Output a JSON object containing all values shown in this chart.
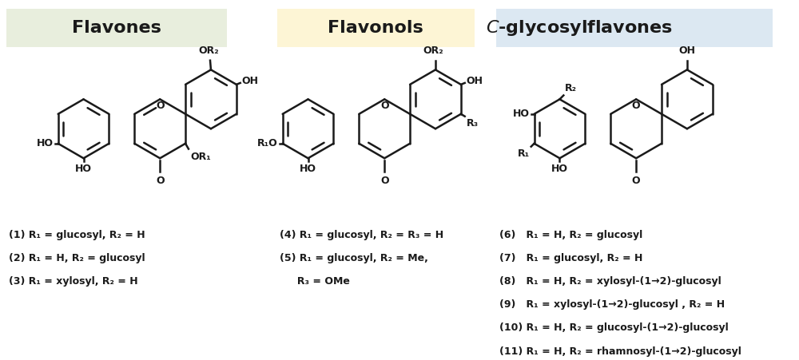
{
  "bg_color": "#ffffff",
  "header_flavones": "Flavones",
  "header_flavonols": "Flavonols",
  "header_bg_flavones": "#e8eedd",
  "header_bg_flavonols": "#fdf5d5",
  "header_bg_cglyco": "#dce8f2",
  "line_color": "#1a1a1a",
  "text_color": "#1a1a1a",
  "lw": 1.8,
  "r_hex": 0.38,
  "caption_flavones": [
    "(1) R₁ = glucosyl, R₂ = H",
    "(2) R₁ = H, R₂ = glucosyl",
    "(3) R₁ = xylosyl, R₂ = H"
  ],
  "caption_flavonols_line1": "(4) R₁ = glucosyl, R₂ = R₃ = H",
  "caption_flavonols_line2": "(5) R₁ = glucosyl, R₂ = Me,",
  "caption_flavonols_line3": "     R₃ = OMe",
  "caption_cglyco": [
    "(6)   R₁ = H, R₂ = glucosyl",
    "(7)   R₁ = glucosyl, R₂ = H",
    "(8)   R₁ = H, R₂ = xylosyl-(1→2)-glucosyl",
    "(9)   R₁ = xylosyl-(1→2)-glucosyl , R₂ = H",
    "(10) R₁ = H, R₂ = glucosyl-(1→2)-glucosyl",
    "(11) R₁ = H, R₂ = rhamnosyl-(1→2)-glucosyl"
  ]
}
